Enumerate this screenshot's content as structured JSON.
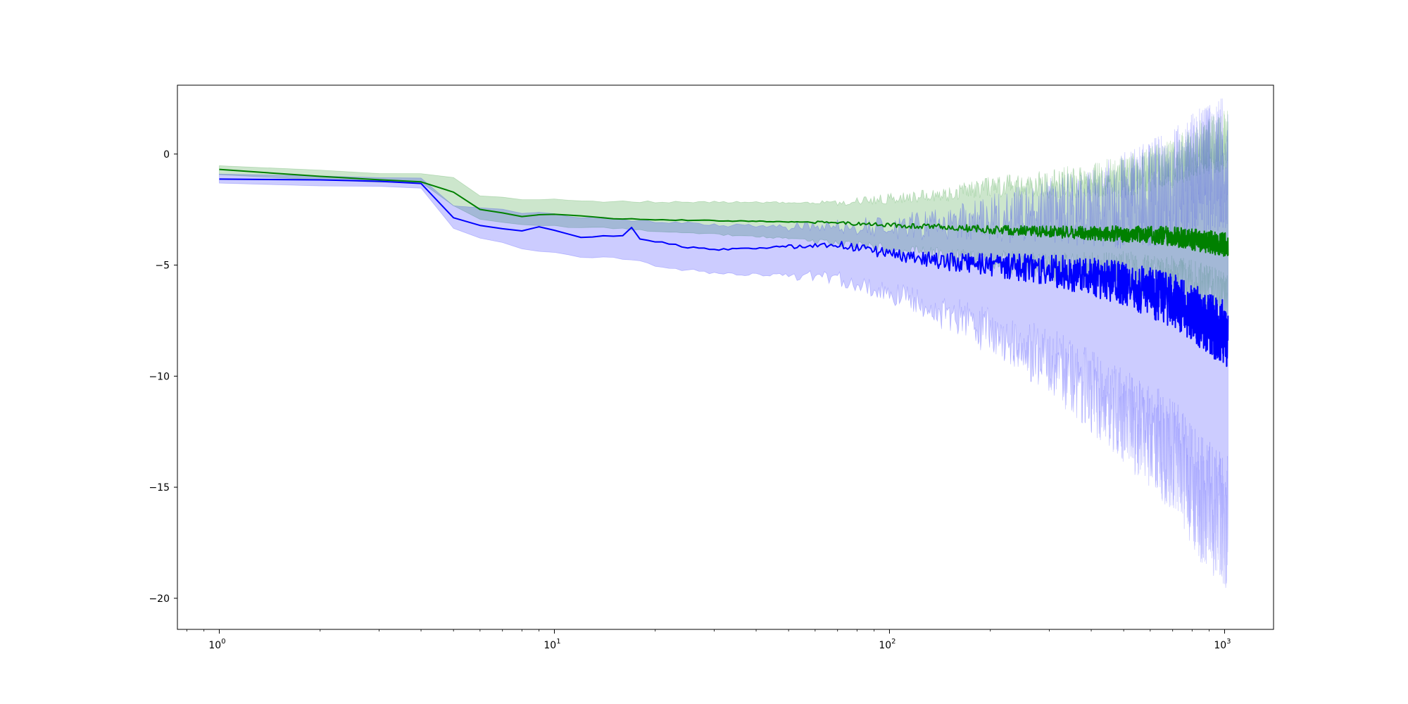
{
  "chart_data": {
    "type": "line",
    "title": "",
    "xlabel": "",
    "ylabel": "",
    "xscale": "log",
    "xlim": [
      0.75,
      1400
    ],
    "ylim": [
      -21.4,
      3.1
    ],
    "grid": false,
    "legend": "none",
    "x_ticks": [
      {
        "base": "10",
        "exp": "0",
        "value": 1
      },
      {
        "base": "10",
        "exp": "1",
        "value": 10
      },
      {
        "base": "10",
        "exp": "2",
        "value": 100
      },
      {
        "base": "10",
        "exp": "3",
        "value": 1000
      }
    ],
    "y_ticks": [
      {
        "label": "0",
        "value": 0
      },
      {
        "label": "−5",
        "value": -5
      },
      {
        "label": "−10",
        "value": -10
      },
      {
        "label": "−15",
        "value": -15
      },
      {
        "label": "−20",
        "value": -20
      }
    ],
    "series": [
      {
        "color": "#008000",
        "band_color": "#008000",
        "band_opacity": 0.2,
        "x_range": [
          1,
          1024
        ],
        "mean_points": [
          [
            1,
            -0.7
          ],
          [
            2,
            -1.0
          ],
          [
            3,
            -1.15
          ],
          [
            4,
            -1.25
          ],
          [
            5,
            -1.7
          ],
          [
            6,
            -2.5
          ],
          [
            8,
            -2.8
          ],
          [
            10,
            -2.7
          ],
          [
            15,
            -2.9
          ],
          [
            20,
            -2.95
          ],
          [
            30,
            -3.0
          ],
          [
            50,
            -3.05
          ],
          [
            70,
            -3.1
          ],
          [
            100,
            -3.2
          ],
          [
            150,
            -3.3
          ],
          [
            200,
            -3.4
          ],
          [
            300,
            -3.5
          ],
          [
            500,
            -3.6
          ],
          [
            700,
            -3.7
          ],
          [
            850,
            -3.9
          ],
          [
            1024,
            -4.1
          ]
        ],
        "band_upper_points": [
          [
            1,
            -0.5
          ],
          [
            2,
            -0.75
          ],
          [
            3,
            -0.85
          ],
          [
            4,
            -0.9
          ],
          [
            5,
            -1.05
          ],
          [
            6,
            -1.9
          ],
          [
            8,
            -2.05
          ],
          [
            10,
            -2.05
          ],
          [
            15,
            -2.15
          ],
          [
            20,
            -2.15
          ],
          [
            30,
            -2.15
          ],
          [
            50,
            -2.2
          ],
          [
            70,
            -2.2
          ],
          [
            100,
            -2.0
          ],
          [
            150,
            -1.8
          ],
          [
            200,
            -1.45
          ],
          [
            300,
            -1.35
          ],
          [
            500,
            -1.0
          ],
          [
            700,
            -0.4
          ],
          [
            850,
            0.3
          ],
          [
            1024,
            0.6
          ]
        ],
        "band_lower_points": [
          [
            1,
            -0.95
          ],
          [
            2,
            -1.15
          ],
          [
            3,
            -1.25
          ],
          [
            4,
            -1.3
          ],
          [
            5,
            -2.35
          ],
          [
            6,
            -2.9
          ],
          [
            8,
            -3.2
          ],
          [
            10,
            -3.25
          ],
          [
            15,
            -3.35
          ],
          [
            20,
            -3.5
          ],
          [
            30,
            -3.6
          ],
          [
            50,
            -3.8
          ],
          [
            70,
            -4.0
          ],
          [
            100,
            -4.25
          ],
          [
            150,
            -4.6
          ],
          [
            200,
            -4.8
          ],
          [
            300,
            -5.1
          ],
          [
            500,
            -5.3
          ],
          [
            700,
            -5.7
          ],
          [
            850,
            -6.1
          ],
          [
            1024,
            -6.6
          ]
        ],
        "noise_start": 60,
        "noise_mean": [
          0.06,
          0.55
        ],
        "noise_band": [
          0.15,
          1.4
        ]
      },
      {
        "color": "#0000ff",
        "band_color": "#0000ff",
        "band_opacity": 0.2,
        "x_range": [
          1,
          1024
        ],
        "mean_points": [
          [
            1,
            -1.1
          ],
          [
            2,
            -1.15
          ],
          [
            3,
            -1.25
          ],
          [
            4,
            -1.35
          ],
          [
            5,
            -2.9
          ],
          [
            6,
            -3.2
          ],
          [
            8,
            -3.45
          ],
          [
            9,
            -3.25
          ],
          [
            12,
            -3.75
          ],
          [
            16,
            -3.65
          ],
          [
            17,
            -3.3
          ],
          [
            18,
            -3.8
          ],
          [
            25,
            -4.2
          ],
          [
            30,
            -4.3
          ],
          [
            40,
            -4.25
          ],
          [
            50,
            -4.15
          ],
          [
            70,
            -4.05
          ],
          [
            100,
            -4.5
          ],
          [
            150,
            -4.85
          ],
          [
            200,
            -5.0
          ],
          [
            300,
            -5.2
          ],
          [
            500,
            -5.8
          ],
          [
            700,
            -6.6
          ],
          [
            850,
            -7.4
          ],
          [
            1024,
            -8.2
          ]
        ],
        "band_upper_points": [
          [
            1,
            -0.95
          ],
          [
            2,
            -1.0
          ],
          [
            3,
            -1.05
          ],
          [
            4,
            -1.15
          ],
          [
            5,
            -2.3
          ],
          [
            6,
            -2.45
          ],
          [
            8,
            -2.6
          ],
          [
            12,
            -2.85
          ],
          [
            16,
            -2.95
          ],
          [
            20,
            -3.05
          ],
          [
            30,
            -3.2
          ],
          [
            50,
            -3.25
          ],
          [
            70,
            -3.2
          ],
          [
            100,
            -3.3
          ],
          [
            150,
            -3.1
          ],
          [
            200,
            -2.9
          ],
          [
            300,
            -2.6
          ],
          [
            500,
            -2.1
          ],
          [
            700,
            -1.5
          ],
          [
            850,
            -0.8
          ],
          [
            1024,
            -0.3
          ]
        ],
        "band_lower_points": [
          [
            1,
            -1.35
          ],
          [
            2,
            -1.4
          ],
          [
            3,
            -1.45
          ],
          [
            4,
            -1.6
          ],
          [
            5,
            -3.4
          ],
          [
            6,
            -3.75
          ],
          [
            8,
            -4.25
          ],
          [
            12,
            -4.6
          ],
          [
            16,
            -4.7
          ],
          [
            20,
            -5.0
          ],
          [
            30,
            -5.4
          ],
          [
            50,
            -5.45
          ],
          [
            70,
            -5.6
          ],
          [
            100,
            -6.2
          ],
          [
            150,
            -7.2
          ],
          [
            200,
            -8.0
          ],
          [
            300,
            -9.3
          ],
          [
            500,
            -11.8
          ],
          [
            700,
            -13.5
          ],
          [
            850,
            -15.5
          ],
          [
            1024,
            -16.6
          ]
        ],
        "noise_start": 50,
        "noise_mean": [
          0.12,
          1.5
        ],
        "noise_band": [
          0.25,
          3.2
        ]
      }
    ]
  }
}
